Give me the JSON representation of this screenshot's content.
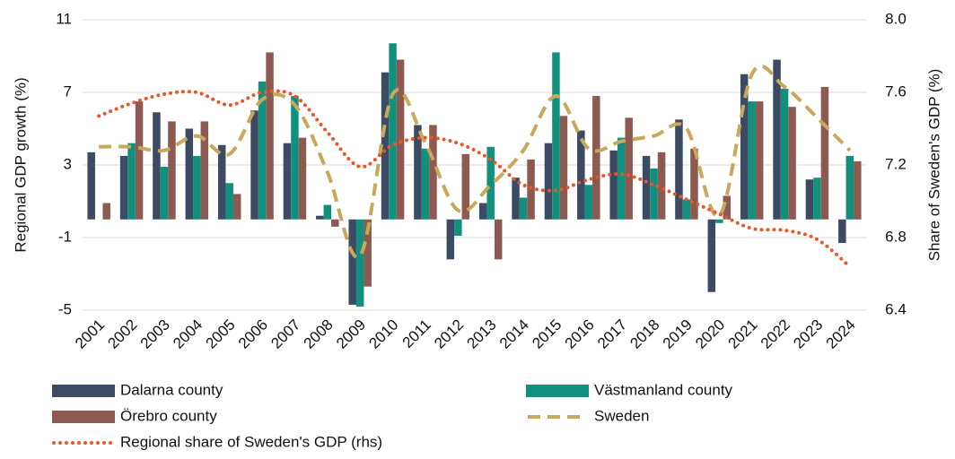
{
  "chart_data": {
    "type": "bar",
    "y_label": "Regional GDP growth (%)",
    "y2_label": "Share of Sweden's GDP (%)",
    "categories": [
      "2001",
      "2002",
      "2003",
      "2004",
      "2005",
      "2006",
      "2007",
      "2008",
      "2009",
      "2010",
      "2011",
      "2012",
      "2013",
      "2014",
      "2015",
      "2016",
      "2017",
      "2018",
      "2019",
      "2020",
      "2021",
      "2022",
      "2023",
      "2024"
    ],
    "series": [
      {
        "name": "Dalarna county",
        "type": "bar",
        "color": "#3d4a63",
        "values": [
          3.7,
          3.5,
          5.9,
          5.0,
          4.1,
          6.0,
          4.2,
          0.2,
          -4.7,
          8.1,
          5.2,
          -2.2,
          0.9,
          2.3,
          4.2,
          4.9,
          3.8,
          3.5,
          5.5,
          -4.0,
          8.0,
          8.8,
          2.2,
          -1.3
        ]
      },
      {
        "name": "Västmanland county",
        "type": "bar",
        "color": "#12907e",
        "values": [
          0,
          4.2,
          2.9,
          3.5,
          2.0,
          7.6,
          6.8,
          0.8,
          -4.8,
          9.7,
          3.9,
          -0.9,
          4.0,
          1.2,
          9.2,
          1.9,
          4.5,
          2.8,
          1.1,
          -0.2,
          6.5,
          7.2,
          2.3,
          3.5
        ]
      },
      {
        "name": "Örebro county",
        "type": "bar",
        "color": "#8c5a50",
        "values": [
          0.9,
          6.5,
          5.4,
          5.4,
          1.4,
          9.2,
          4.5,
          -0.4,
          -3.7,
          8.8,
          5.2,
          3.6,
          -2.2,
          3.3,
          5.7,
          6.8,
          5.6,
          3.7,
          3.9,
          1.3,
          6.5,
          6.2,
          7.3,
          3.2
        ]
      },
      {
        "name": "Sweden",
        "type": "line",
        "style": "dashed",
        "color": "#c8a85a",
        "values": [
          4.0,
          4.0,
          3.8,
          4.6,
          3.6,
          6.6,
          6.3,
          2.6,
          -2.0,
          6.9,
          4.2,
          0.5,
          1.9,
          3.8,
          6.8,
          3.9,
          4.3,
          4.6,
          5.0,
          0.2,
          8.0,
          7.3,
          5.6,
          3.8
        ]
      },
      {
        "name": "Regional share of Sweden's GDP (rhs)",
        "type": "line",
        "style": "dotted",
        "axis": "y2",
        "color": "#e8562a",
        "values": [
          7.47,
          7.54,
          7.59,
          7.6,
          7.53,
          7.6,
          7.58,
          7.38,
          7.19,
          7.31,
          7.35,
          7.32,
          7.23,
          7.09,
          7.06,
          7.12,
          7.15,
          7.09,
          7.01,
          6.93,
          6.85,
          6.84,
          6.79,
          6.64
        ]
      }
    ],
    "ylim": [
      -5,
      11
    ],
    "yticks": [
      -5,
      -1,
      3,
      7,
      11
    ],
    "y2lim": [
      6.4,
      8
    ],
    "y2ticks": [
      6.4,
      6.8,
      7.2,
      7.6,
      {
        "value": 8,
        "label": "8.0"
      }
    ],
    "grid": true
  }
}
